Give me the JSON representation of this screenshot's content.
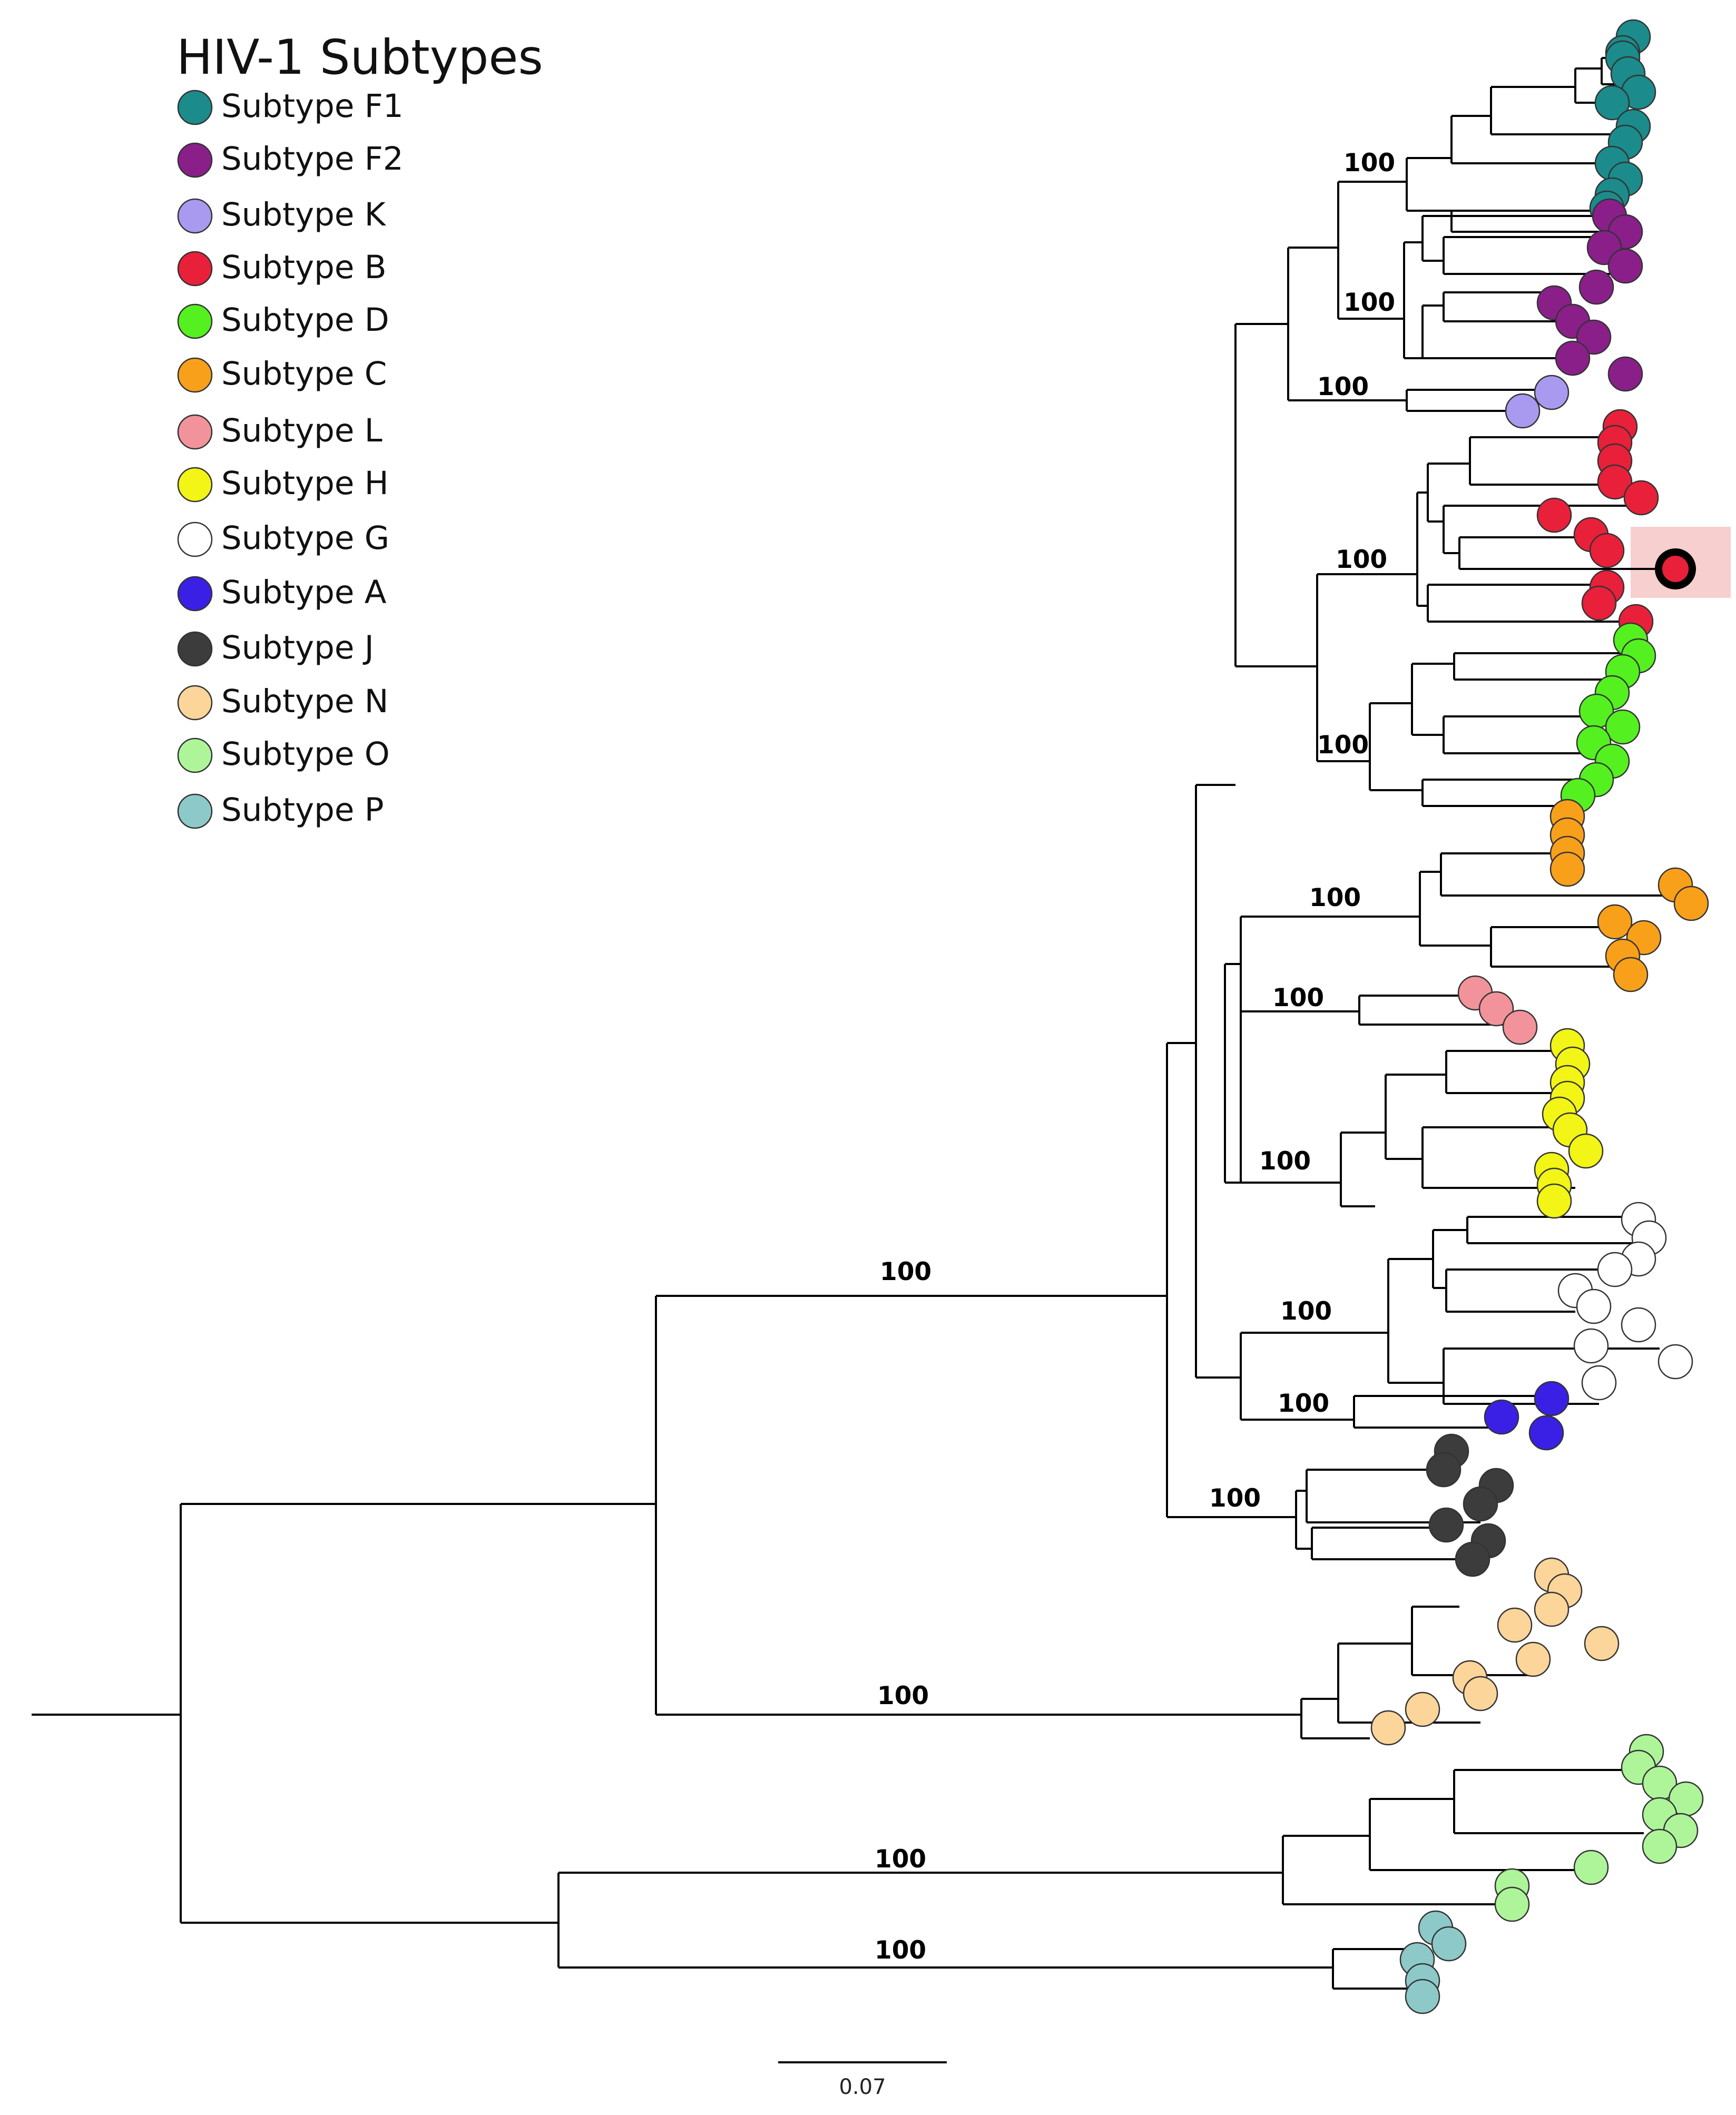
{
  "legend": {
    "title": "HIV-1 Subtypes",
    "items": [
      {
        "label": "Subtype F1",
        "color": "#1b8b8b"
      },
      {
        "label": "Subtype F2",
        "color": "#8a1f8a"
      },
      {
        "label": "Subtype K",
        "color": "#a99af0"
      },
      {
        "label": "Subtype B",
        "color": "#e8203a"
      },
      {
        "label": "Subtype D",
        "color": "#55f020"
      },
      {
        "label": "Subtype C",
        "color": "#f9a01b"
      },
      {
        "label": "Subtype L",
        "color": "#f2939b"
      },
      {
        "label": "Subtype H",
        "color": "#f2f515"
      },
      {
        "label": "Subtype G",
        "color": "#ffffff"
      },
      {
        "label": "Subtype A",
        "color": "#3a20e5"
      },
      {
        "label": "Subtype J",
        "color": "#3c3c3c"
      },
      {
        "label": "Subtype N",
        "color": "#fcd59a"
      },
      {
        "label": "Subtype O",
        "color": "#aef59a"
      },
      {
        "label": "Subtype P",
        "color": "#8ec9c9"
      }
    ]
  },
  "bootstrap_labels": [
    "100",
    "100",
    "100",
    "100",
    "100",
    "100",
    "100",
    "100",
    "100",
    "100",
    "100",
    "100",
    "100",
    "100",
    "100"
  ],
  "scale_bar": {
    "label": "0.07"
  },
  "highlight": {
    "subtype": "Subtype B",
    "color": "#f7cfcf"
  }
}
